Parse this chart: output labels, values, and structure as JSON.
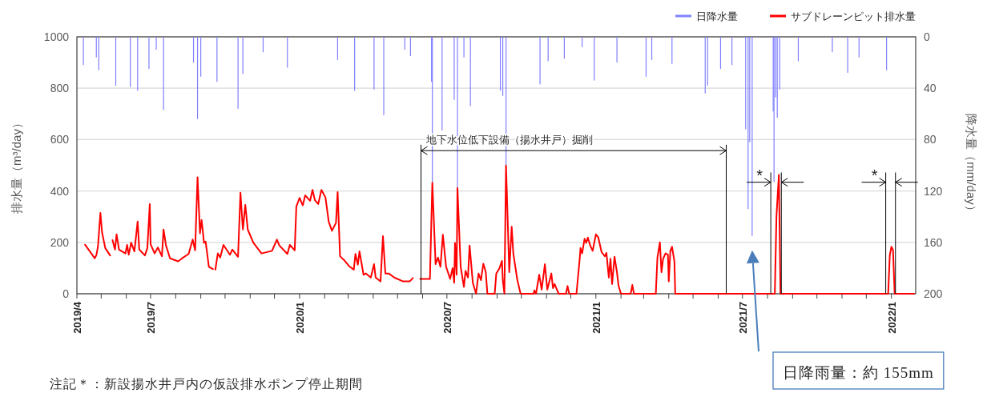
{
  "chart_data": {
    "type": "line",
    "xlim": [
      "2019-04-01",
      "2022-01-31"
    ],
    "xticks": [
      {
        "value": "2019-04-01",
        "label": "2019/4"
      },
      {
        "value": "2019-05-01",
        "label": null
      },
      {
        "value": "2019-06-01",
        "label": null
      },
      {
        "value": "2019-07-01",
        "label": "2019/7"
      },
      {
        "value": "2019-08-01",
        "label": null
      },
      {
        "value": "2019-09-01",
        "label": null
      },
      {
        "value": "2019-10-01",
        "label": null
      },
      {
        "value": "2019-11-01",
        "label": null
      },
      {
        "value": "2019-12-01",
        "label": null
      },
      {
        "value": "2020-01-01",
        "label": "2020/1"
      },
      {
        "value": "2020-02-01",
        "label": null
      },
      {
        "value": "2020-03-01",
        "label": null
      },
      {
        "value": "2020-04-01",
        "label": null
      },
      {
        "value": "2020-05-01",
        "label": null
      },
      {
        "value": "2020-06-01",
        "label": null
      },
      {
        "value": "2020-07-01",
        "label": "2020/7"
      },
      {
        "value": "2020-08-01",
        "label": null
      },
      {
        "value": "2020-09-01",
        "label": null
      },
      {
        "value": "2020-10-01",
        "label": null
      },
      {
        "value": "2020-11-01",
        "label": null
      },
      {
        "value": "2020-12-01",
        "label": null
      },
      {
        "value": "2021-01-01",
        "label": "2021/1"
      },
      {
        "value": "2021-02-01",
        "label": null
      },
      {
        "value": "2021-03-01",
        "label": null
      },
      {
        "value": "2021-04-01",
        "label": null
      },
      {
        "value": "2021-05-01",
        "label": null
      },
      {
        "value": "2021-06-01",
        "label": null
      },
      {
        "value": "2021-07-01",
        "label": "2021/7"
      },
      {
        "value": "2021-08-01",
        "label": null
      },
      {
        "value": "2021-09-01",
        "label": null
      },
      {
        "value": "2021-10-01",
        "label": null
      },
      {
        "value": "2021-11-01",
        "label": null
      },
      {
        "value": "2021-12-01",
        "label": null
      },
      {
        "value": "2022-01-01",
        "label": "2022/1"
      }
    ],
    "ylim": [
      0,
      1000
    ],
    "yticks": [
      0,
      200,
      400,
      600,
      800,
      1000
    ],
    "y2lim": [
      200,
      0
    ],
    "y2ticks": [
      0,
      40,
      80,
      120,
      160,
      200
    ],
    "ylabel": "排水量（m³/day）",
    "y2label": "降水量（mm/day）",
    "grid": "y",
    "legend": "top right",
    "line_style": "solid",
    "marker": "none",
    "series": [
      {
        "name": "日降水量",
        "type": "bar",
        "axis": "y2",
        "color": "#8080ff",
        "x": [
          "2019-04-09",
          "2019-04-25",
          "2019-04-28",
          "2019-05-19",
          "2019-06-06",
          "2019-06-15",
          "2019-06-29",
          "2019-07-08",
          "2019-07-17",
          "2019-08-23",
          "2019-08-28",
          "2019-09-01",
          "2019-09-21",
          "2019-10-17",
          "2019-10-23",
          "2019-11-17",
          "2019-12-17",
          "2020-02-17",
          "2020-03-09",
          "2020-04-02",
          "2020-04-14",
          "2020-05-10",
          "2020-05-17",
          "2020-06-12",
          "2020-06-13",
          "2020-06-25",
          "2020-07-10",
          "2020-07-14",
          "2020-07-22",
          "2020-07-30",
          "2020-09-05",
          "2020-09-08",
          "2020-09-12",
          "2020-10-24",
          "2020-11-03",
          "2020-11-23",
          "2020-12-15",
          "2020-12-30",
          "2021-01-27",
          "2021-03-04",
          "2021-03-11",
          "2021-04-05",
          "2021-05-16",
          "2021-05-19",
          "2021-06-04",
          "2021-06-18",
          "2021-07-05",
          "2021-07-08",
          "2021-07-10",
          "2021-07-13",
          "2021-08-08",
          "2021-08-09",
          "2021-08-11",
          "2021-08-13",
          "2021-08-16",
          "2021-09-08",
          "2021-10-20",
          "2021-11-08",
          "2021-11-22",
          "2021-12-26"
        ],
        "values": [
          22,
          16,
          26,
          38,
          39,
          42,
          25,
          10,
          57,
          20,
          64,
          31,
          35,
          56,
          29,
          12,
          24,
          18,
          42,
          41,
          61,
          10,
          15,
          35,
          114,
          73,
          49,
          118,
          16,
          54,
          42,
          46,
          100,
          37,
          19,
          17,
          8,
          34,
          20,
          31,
          18,
          21,
          44,
          38,
          25,
          22,
          72,
          134,
          82,
          155,
          58,
          113,
          47,
          63,
          41,
          19,
          12,
          28,
          16,
          26
        ]
      },
      {
        "name": "サブドレーンピット排水量",
        "color": "#ff0000",
        "x": [
          "2019-04-11",
          "2019-04-23",
          "2019-04-25",
          "2019-04-27",
          "2019-04-30",
          "2019-05-02",
          "2019-05-06",
          "2019-05-12",
          "2019-05-13",
          "2019-05-15",
          "2019-05-18",
          "2019-05-20",
          "2019-05-23",
          "2019-05-31",
          "2019-06-02",
          "2019-06-04",
          "2019-06-07",
          "2019-06-11",
          "2019-06-15",
          "2019-06-17",
          "2019-06-24",
          "2019-06-27",
          "2019-06-30",
          "2019-07-01",
          "2019-07-06",
          "2019-07-10",
          "2019-07-15",
          "2019-07-17",
          "2019-07-20",
          "2019-07-25",
          "2019-08-04",
          "2019-08-09",
          "2019-08-17",
          "2019-08-22",
          "2019-08-25",
          "2019-08-28",
          "2019-08-31",
          "2019-09-02",
          "2019-09-05",
          "2019-09-07",
          "2019-09-11",
          "2019-09-16",
          "2019-09-18",
          "2019-09-19",
          "2019-09-22",
          "2019-09-25",
          "2019-09-29",
          "2019-10-07",
          "2019-10-10",
          "2019-10-17",
          "2019-10-20",
          "2019-10-23",
          "2019-10-26",
          "2019-10-29",
          "2019-11-05",
          "2019-11-15",
          "2019-11-28",
          "2019-12-04",
          "2019-12-07",
          "2019-12-17",
          "2019-12-20",
          "2019-12-26",
          "2019-12-28",
          "2020-01-01",
          "2020-01-05",
          "2020-01-08",
          "2020-01-14",
          "2020-01-17",
          "2020-01-20",
          "2020-01-24",
          "2020-01-28",
          "2020-02-02",
          "2020-02-06",
          "2020-02-10",
          "2020-02-15",
          "2020-02-17",
          "2020-02-20",
          "2020-02-25",
          "2020-03-03",
          "2020-03-08",
          "2020-03-10",
          "2020-03-13",
          "2020-03-15",
          "2020-03-20",
          "2020-03-23",
          "2020-03-29",
          "2020-04-02",
          "2020-04-04",
          "2020-04-10",
          "2020-04-13",
          "2020-04-16",
          "2020-04-20",
          "2020-04-27",
          "2020-05-08",
          "2020-05-16",
          "2020-05-20",
          "2020-05-25",
          "2020-05-29",
          "2020-06-10",
          "2020-06-13",
          "2020-06-17",
          "2020-06-20",
          "2020-06-23",
          "2020-06-26",
          "2020-06-30",
          "2020-07-05",
          "2020-07-08",
          "2020-07-10",
          "2020-07-11",
          "2020-07-13",
          "2020-07-14",
          "2020-07-18",
          "2020-07-22",
          "2020-07-24",
          "2020-07-27",
          "2020-07-29",
          "2020-08-02",
          "2020-08-06",
          "2020-08-09",
          "2020-08-12",
          "2020-08-15",
          "2020-08-18",
          "2020-08-20",
          "2020-08-29",
          "2020-08-31",
          "2020-09-04",
          "2020-09-07",
          "2020-09-08",
          "2020-09-10",
          "2020-09-12",
          "2020-09-16",
          "2020-09-19",
          "2020-09-21",
          "2020-09-26",
          "2020-09-30",
          "2020-10-16",
          "2020-10-17",
          "2020-10-19",
          "2020-10-23",
          "2020-10-26",
          "2020-10-30",
          "2020-11-02",
          "2020-11-07",
          "2020-11-09",
          "2020-11-11",
          "2020-11-16",
          "2020-11-25",
          "2020-11-27",
          "2020-11-29",
          "2020-12-08",
          "2020-12-12",
          "2020-12-13",
          "2020-12-15",
          "2020-12-18",
          "2020-12-20",
          "2020-12-22",
          "2020-12-25",
          "2020-12-28",
          "2021-01-01",
          "2021-01-04",
          "2021-01-08",
          "2021-01-12",
          "2021-01-14",
          "2021-01-17",
          "2021-01-19",
          "2021-01-21",
          "2021-01-24",
          "2021-01-27",
          "2021-01-29",
          "2021-02-01",
          "2021-02-13",
          "2021-02-15",
          "2021-02-17",
          "2021-03-16",
          "2021-03-18",
          "2021-03-21",
          "2021-03-23",
          "2021-03-25",
          "2021-03-28",
          "2021-03-31",
          "2021-04-01",
          "2021-04-03",
          "2021-04-05",
          "2021-04-08",
          "2021-04-09",
          "2021-08-10",
          "2021-08-12",
          "2021-08-15",
          "2021-08-17",
          "2021-12-28",
          "2021-12-30",
          "2022-01-01",
          "2022-01-03",
          "2022-01-05",
          "2022-01-29"
        ],
        "values": [
          191,
          138,
          150,
          183,
          315,
          240,
          178,
          149,
          null,
          209,
          172,
          231,
          172,
          157,
          190,
          152,
          199,
          165,
          281,
          172,
          149,
          178,
          349,
          193,
          157,
          180,
          146,
          250,
          188,
          138,
          126,
          138,
          155,
          211,
          169,
          453,
          235,
          287,
          198,
          203,
          105,
          96,
          null,
          94,
          157,
          141,
          190,
          152,
          172,
          144,
          393,
          250,
          346,
          250,
          198,
          157,
          167,
          211,
          188,
          155,
          190,
          169,
          339,
          373,
          344,
          383,
          362,
          404,
          364,
          349,
          404,
          375,
          281,
          245,
          276,
          396,
          146,
          131,
          105,
          94,
          155,
          113,
          165,
          74,
          79,
          63,
          115,
          63,
          48,
          224,
          79,
          79,
          63,
          48,
          48,
          61,
          null,
          58,
          58,
          432,
          115,
          141,
          105,
          230,
          105,
          58,
          100,
          43,
          198,
          74,
          411,
          105,
          27,
          89,
          63,
          188,
          43,
          0,
          79,
          53,
          117,
          84,
          0,
          0,
          79,
          100,
          128,
          53,
          0,
          499,
          84,
          261,
          157,
          53,
          0,
          0,
          13,
          0,
          74,
          16,
          115,
          16,
          79,
          22,
          38,
          0,
          0,
          30,
          0,
          0,
          136,
          178,
          157,
          214,
          198,
          219,
          188,
          167,
          231,
          219,
          162,
          146,
          159,
          63,
          136,
          38,
          144,
          84,
          31,
          0,
          0,
          34,
          0,
          0,
          141,
          200,
          84,
          136,
          157,
          152,
          48,
          167,
          183,
          126,
          0,
          0,
          300,
          463,
          0,
          0,
          150,
          183,
          170,
          0,
          0
        ]
      }
    ],
    "ref_lines": [
      {
        "axis": "x",
        "value": "2020-05-30",
        "label": "地下水位低下設備（揚水井戸）掘削",
        "color": "#000000"
      },
      {
        "axis": "x",
        "value": "2021-06-11",
        "label": null,
        "color": "#000000"
      },
      {
        "axis": "x",
        "value": "2021-08-05",
        "label": "*",
        "color": "#000000"
      },
      {
        "axis": "x",
        "value": "2021-08-18",
        "label": null,
        "color": "#000000"
      },
      {
        "axis": "x",
        "value": "2021-12-25",
        "label": "*",
        "color": "#000000"
      },
      {
        "axis": "x",
        "value": "2022-01-06",
        "label": null,
        "color": "#000000"
      }
    ],
    "annotations": [
      "日降雨量：約 155mm",
      "注記＊：新設揚水井戸内の仮設排水ポンプ停止期間"
    ]
  }
}
